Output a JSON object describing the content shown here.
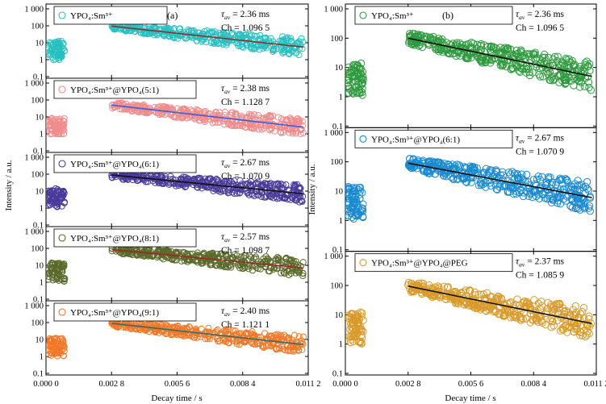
{
  "chart_data": {
    "type": "scatter",
    "x_axis": {
      "label": "Decay time / s",
      "range": [
        0,
        0.0112
      ],
      "tick_values": [
        0,
        0.0028,
        0.0056,
        0.0084,
        0.0112
      ],
      "tick_labels": [
        "0.000 0",
        "0.002 8",
        "0.005 6",
        "0.008 4",
        "0.011 2"
      ]
    },
    "y_axis": {
      "label": "Intensity / a.u.",
      "scale": "log",
      "range": [
        0.1,
        1000
      ],
      "tick_values": [
        0.1,
        1,
        10,
        100,
        1000
      ],
      "tick_labels": [
        "0.1",
        "1",
        "10",
        "100",
        "1 000"
      ]
    },
    "panels": [
      {
        "label": "(a)",
        "subplots": [
          {
            "legend": "YPO₄:Sm³⁺",
            "tau": "= 2.36 ms",
            "ch": "Ch = 1.096 5",
            "color": "#28c0c0",
            "fit_color": "#8b3030",
            "fit_start": 0.0028,
            "fit_end": 0.011,
            "y_start": 95,
            "y_end": 5.5,
            "pre_level": 3.5
          },
          {
            "legend": "YPO₄:Sm³⁺@YPO₄(5:1)",
            "tau": "= 2.38 ms",
            "ch": "Ch = 1.128 7",
            "color": "#f08c8c",
            "fit_color": "#3a5fd8",
            "fit_start": 0.0028,
            "fit_end": 0.011,
            "y_start": 50,
            "y_end": 2.5,
            "pre_level": 2.5
          },
          {
            "legend": "YPO₄:Sm³⁺@YPO₄(6:1)",
            "tau": "= 2.67 ms",
            "ch": "Ch = 1.070 9",
            "color": "#4a3a9a",
            "fit_color": "#111111",
            "fit_start": 0.0028,
            "fit_end": 0.011,
            "y_start": 90,
            "y_end": 7,
            "pre_level": 4
          },
          {
            "legend": "YPO₄:Sm³⁺@YPO₄(8:1)",
            "tau": "= 2.57 ms",
            "ch": "Ch = 1.098 7",
            "color": "#5a6a2a",
            "fit_color": "#9a2a2a",
            "fit_start": 0.0028,
            "fit_end": 0.011,
            "y_start": 85,
            "y_end": 7,
            "pre_level": 4
          },
          {
            "legend": "YPO₄:Sm³⁺@YPO₄(9:1)",
            "tau": "= 2.40 ms",
            "ch": "Ch = 1.121 1",
            "color": "#f07828",
            "fit_color": "#3a6a6a",
            "fit_start": 0.0028,
            "fit_end": 0.011,
            "y_start": 90,
            "y_end": 5,
            "pre_level": 3.5
          }
        ]
      },
      {
        "label": "(b)",
        "subplots": [
          {
            "legend": "YPO₄:Sm³⁺",
            "tau": "= 2.36 ms",
            "ch": "Ch = 1.096 5",
            "color": "#2e9a3e",
            "fit_color": "#111111",
            "fit_start": 0.0028,
            "fit_end": 0.011,
            "y_start": 100,
            "y_end": 5,
            "pre_level": 4
          },
          {
            "legend": "YPO₄:Sm³⁺@YPO₄(6:1)",
            "tau": "= 2.67 ms",
            "ch": "Ch = 1.070 9",
            "color": "#1a8ad0",
            "fit_color": "#111111",
            "fit_start": 0.0028,
            "fit_end": 0.011,
            "y_start": 90,
            "y_end": 6,
            "pre_level": 4
          },
          {
            "legend": "YPO₄:Sm³⁺@YPO₄@PEG",
            "tau": "= 2.37 ms",
            "ch": "Ch = 1.085 9",
            "color": "#d89a2a",
            "fit_color": "#111111",
            "fit_start": 0.0028,
            "fit_end": 0.011,
            "y_start": 95,
            "y_end": 5,
            "pre_level": 3.5
          }
        ]
      }
    ],
    "tau_symbol": "τ",
    "tau_subscript": "av"
  }
}
